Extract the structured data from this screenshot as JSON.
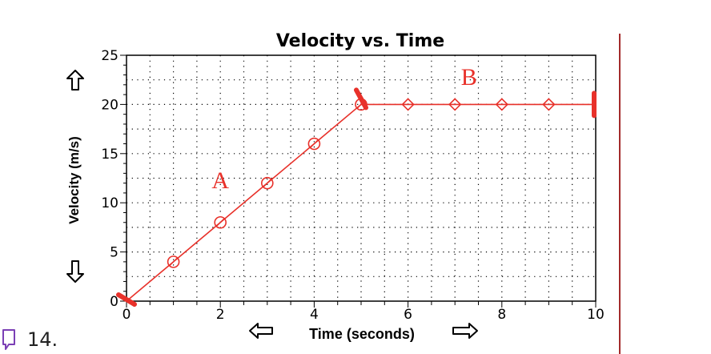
{
  "question": {
    "number": "14.",
    "icon": "bookmark-icon"
  },
  "colors": {
    "data": "#e8312a",
    "axis": "#000000",
    "grid": "#000000",
    "divider": "#a32b2b",
    "icon": "#7b3fb5"
  },
  "chart_data": {
    "type": "line",
    "title": "Velocity vs. Time",
    "xlabel": "Time (seconds)",
    "ylabel": "Velocity (m/s)",
    "xlim": [
      0,
      10
    ],
    "ylim": [
      0,
      25
    ],
    "xticks": [
      0,
      2,
      4,
      6,
      8,
      10
    ],
    "yticks": [
      0,
      5,
      10,
      15,
      20,
      25
    ],
    "grid": true,
    "axis_arrows": [
      "arrow-up-icon",
      "arrow-down-icon",
      "arrow-left-icon",
      "arrow-right-icon"
    ],
    "series": [
      {
        "x": [
          0,
          1,
          2,
          3,
          4,
          5,
          6,
          7,
          8,
          9,
          10
        ],
        "y": [
          0,
          4,
          8,
          12,
          16,
          20,
          20,
          20,
          20,
          20,
          20
        ]
      }
    ],
    "annotations": [
      {
        "text": "A",
        "x": 2.0,
        "y": 11.5
      },
      {
        "text": "B",
        "x": 7.3,
        "y": 22.0
      }
    ],
    "handles": [
      {
        "x": 0,
        "y": 0
      },
      {
        "x": 5,
        "y": 20
      },
      {
        "x": 10,
        "y": 20
      }
    ]
  }
}
